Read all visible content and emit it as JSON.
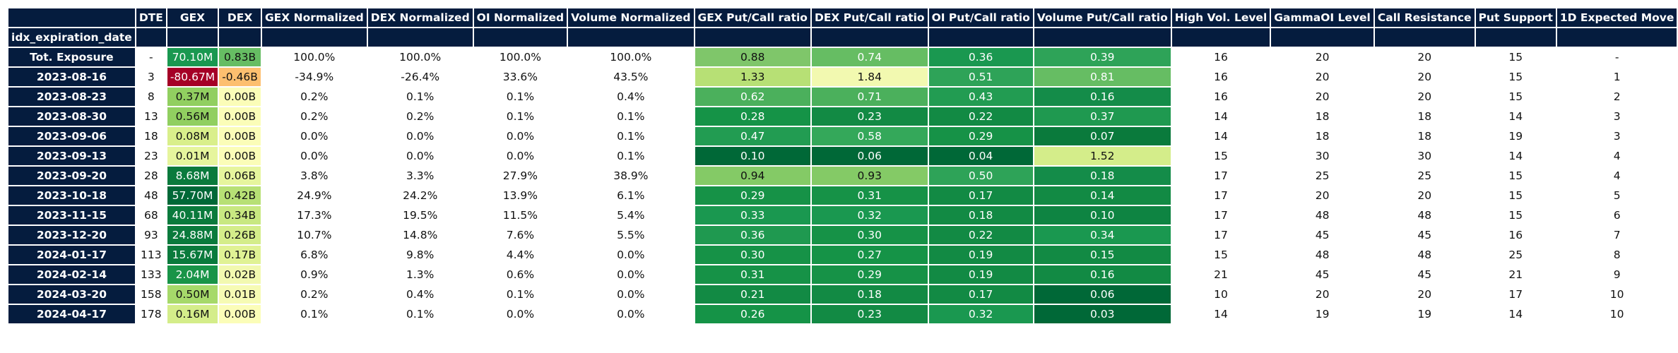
{
  "columns": [
    "DTE",
    "GEX",
    "DEX",
    "GEX Normalized",
    "DEX Normalized",
    "OI Normalized",
    "Volume Normalized",
    "GEX Put/Call ratio",
    "DEX Put/Call ratio",
    "OI Put/Call ratio",
    "Volume Put/Call ratio",
    "High Vol. Level",
    "GammaOI Level",
    "Call Resistance",
    "Put Support",
    "1D Expected Move"
  ],
  "index_name": "idx_expiration_date",
  "rows": [
    {
      "label": "Tot. Exposure",
      "cells": [
        {
          "text": "-"
        },
        {
          "text": "70.10M",
          "bg": "#1a9850",
          "fg": "#ffffff"
        },
        {
          "text": "0.83B",
          "bg": "#66bd63",
          "fg": "#111111"
        },
        {
          "text": "100.0%"
        },
        {
          "text": "100.0%"
        },
        {
          "text": "100.0%"
        },
        {
          "text": "100.0%"
        },
        {
          "text": "0.88",
          "bg": "#7fc66a",
          "fg": "#111111"
        },
        {
          "text": "0.74",
          "bg": "#66bd63",
          "fg": "#ffffff"
        },
        {
          "text": "0.36",
          "bg": "#1a9850",
          "fg": "#ffffff"
        },
        {
          "text": "0.39",
          "bg": "#2ea358",
          "fg": "#ffffff"
        },
        {
          "text": "16"
        },
        {
          "text": "20"
        },
        {
          "text": "20"
        },
        {
          "text": "15"
        },
        {
          "text": "-"
        }
      ]
    },
    {
      "label": "2023-08-16",
      "cells": [
        {
          "text": "3"
        },
        {
          "text": "-80.67M",
          "bg": "#a50026",
          "fg": "#ffffff"
        },
        {
          "text": "-0.46B",
          "bg": "#fdbf6f",
          "fg": "#111111"
        },
        {
          "text": "-34.9%"
        },
        {
          "text": "-26.4%"
        },
        {
          "text": "33.6%"
        },
        {
          "text": "43.5%"
        },
        {
          "text": "1.33",
          "bg": "#b7e075",
          "fg": "#111111"
        },
        {
          "text": "1.84",
          "bg": "#f2f9b0",
          "fg": "#111111"
        },
        {
          "text": "0.51",
          "bg": "#2ea358",
          "fg": "#ffffff"
        },
        {
          "text": "0.81",
          "bg": "#66bd63",
          "fg": "#ffffff"
        },
        {
          "text": "16"
        },
        {
          "text": "20"
        },
        {
          "text": "20"
        },
        {
          "text": "15"
        },
        {
          "text": "1"
        }
      ]
    },
    {
      "label": "2023-08-23",
      "cells": [
        {
          "text": "8"
        },
        {
          "text": "0.37M",
          "bg": "#91cf60",
          "fg": "#111111"
        },
        {
          "text": "0.00B",
          "bg": "#fbfdb8",
          "fg": "#111111"
        },
        {
          "text": "0.2%"
        },
        {
          "text": "0.1%"
        },
        {
          "text": "0.1%"
        },
        {
          "text": "0.4%"
        },
        {
          "text": "0.62",
          "bg": "#4bb05c",
          "fg": "#ffffff"
        },
        {
          "text": "0.71",
          "bg": "#4bb05c",
          "fg": "#ffffff"
        },
        {
          "text": "0.43",
          "bg": "#229c52",
          "fg": "#ffffff"
        },
        {
          "text": "0.16",
          "bg": "#148c49",
          "fg": "#ffffff"
        },
        {
          "text": "16"
        },
        {
          "text": "20"
        },
        {
          "text": "20"
        },
        {
          "text": "15"
        },
        {
          "text": "2"
        }
      ]
    },
    {
      "label": "2023-08-30",
      "cells": [
        {
          "text": "13"
        },
        {
          "text": "0.56M",
          "bg": "#91cf60",
          "fg": "#111111"
        },
        {
          "text": "0.00B",
          "bg": "#fbfdb8",
          "fg": "#111111"
        },
        {
          "text": "0.2%"
        },
        {
          "text": "0.2%"
        },
        {
          "text": "0.1%"
        },
        {
          "text": "0.1%"
        },
        {
          "text": "0.28",
          "bg": "#159347",
          "fg": "#ffffff"
        },
        {
          "text": "0.23",
          "bg": "#128a44",
          "fg": "#ffffff"
        },
        {
          "text": "0.22",
          "bg": "#128a44",
          "fg": "#ffffff"
        },
        {
          "text": "0.37",
          "bg": "#1f9950",
          "fg": "#ffffff"
        },
        {
          "text": "14"
        },
        {
          "text": "18"
        },
        {
          "text": "18"
        },
        {
          "text": "14"
        },
        {
          "text": "3"
        }
      ]
    },
    {
      "label": "2023-09-06",
      "cells": [
        {
          "text": "18"
        },
        {
          "text": "0.08M",
          "bg": "#d9ef8b",
          "fg": "#111111"
        },
        {
          "text": "0.00B",
          "bg": "#fbfdb8",
          "fg": "#111111"
        },
        {
          "text": "0.0%"
        },
        {
          "text": "0.0%"
        },
        {
          "text": "0.0%"
        },
        {
          "text": "0.1%"
        },
        {
          "text": "0.47",
          "bg": "#229c52",
          "fg": "#ffffff"
        },
        {
          "text": "0.58",
          "bg": "#34a85a",
          "fg": "#ffffff"
        },
        {
          "text": "0.29",
          "bg": "#169247",
          "fg": "#ffffff"
        },
        {
          "text": "0.07",
          "bg": "#0a7a3c",
          "fg": "#ffffff"
        },
        {
          "text": "14"
        },
        {
          "text": "18"
        },
        {
          "text": "18"
        },
        {
          "text": "19"
        },
        {
          "text": "3"
        }
      ]
    },
    {
      "label": "2023-09-13",
      "cells": [
        {
          "text": "23"
        },
        {
          "text": "0.01M",
          "bg": "#e6f59d",
          "fg": "#111111"
        },
        {
          "text": "0.00B",
          "bg": "#fbfdb8",
          "fg": "#111111"
        },
        {
          "text": "0.0%"
        },
        {
          "text": "0.0%"
        },
        {
          "text": "0.0%"
        },
        {
          "text": "0.1%"
        },
        {
          "text": "0.10",
          "bg": "#006837",
          "fg": "#ffffff"
        },
        {
          "text": "0.06",
          "bg": "#006837",
          "fg": "#ffffff"
        },
        {
          "text": "0.04",
          "bg": "#006837",
          "fg": "#ffffff"
        },
        {
          "text": "1.52",
          "bg": "#d4ed8a",
          "fg": "#111111"
        },
        {
          "text": "15"
        },
        {
          "text": "30"
        },
        {
          "text": "30"
        },
        {
          "text": "14"
        },
        {
          "text": "4"
        }
      ]
    },
    {
      "label": "2023-09-20",
      "cells": [
        {
          "text": "28"
        },
        {
          "text": "8.68M",
          "bg": "#0a7a3c",
          "fg": "#ffffff"
        },
        {
          "text": "0.06B",
          "bg": "#e6f59d",
          "fg": "#111111"
        },
        {
          "text": "3.8%"
        },
        {
          "text": "3.3%"
        },
        {
          "text": "27.9%"
        },
        {
          "text": "38.9%"
        },
        {
          "text": "0.94",
          "bg": "#84ca66",
          "fg": "#111111"
        },
        {
          "text": "0.93",
          "bg": "#84ca66",
          "fg": "#111111"
        },
        {
          "text": "0.50",
          "bg": "#2ea358",
          "fg": "#ffffff"
        },
        {
          "text": "0.18",
          "bg": "#148c49",
          "fg": "#ffffff"
        },
        {
          "text": "17"
        },
        {
          "text": "25"
        },
        {
          "text": "25"
        },
        {
          "text": "15"
        },
        {
          "text": "4"
        }
      ]
    },
    {
      "label": "2023-10-18",
      "cells": [
        {
          "text": "48"
        },
        {
          "text": "57.70M",
          "bg": "#006837",
          "fg": "#ffffff"
        },
        {
          "text": "0.42B",
          "bg": "#b7e075",
          "fg": "#111111"
        },
        {
          "text": "24.9%"
        },
        {
          "text": "24.2%"
        },
        {
          "text": "13.9%"
        },
        {
          "text": "6.1%"
        },
        {
          "text": "0.29",
          "bg": "#169247",
          "fg": "#ffffff"
        },
        {
          "text": "0.31",
          "bg": "#169247",
          "fg": "#ffffff"
        },
        {
          "text": "0.17",
          "bg": "#128a44",
          "fg": "#ffffff"
        },
        {
          "text": "0.14",
          "bg": "#128a44",
          "fg": "#ffffff"
        },
        {
          "text": "17"
        },
        {
          "text": "20"
        },
        {
          "text": "20"
        },
        {
          "text": "15"
        },
        {
          "text": "5"
        }
      ]
    },
    {
      "label": "2023-11-15",
      "cells": [
        {
          "text": "68"
        },
        {
          "text": "40.11M",
          "bg": "#0a7a3c",
          "fg": "#ffffff"
        },
        {
          "text": "0.34B",
          "bg": "#c8e881",
          "fg": "#111111"
        },
        {
          "text": "17.3%"
        },
        {
          "text": "19.5%"
        },
        {
          "text": "11.5%"
        },
        {
          "text": "5.4%"
        },
        {
          "text": "0.33",
          "bg": "#1a9850",
          "fg": "#ffffff"
        },
        {
          "text": "0.32",
          "bg": "#1a9850",
          "fg": "#ffffff"
        },
        {
          "text": "0.18",
          "bg": "#128a44",
          "fg": "#ffffff"
        },
        {
          "text": "0.10",
          "bg": "#0e8442",
          "fg": "#ffffff"
        },
        {
          "text": "17"
        },
        {
          "text": "48"
        },
        {
          "text": "48"
        },
        {
          "text": "15"
        },
        {
          "text": "6"
        }
      ]
    },
    {
      "label": "2023-12-20",
      "cells": [
        {
          "text": "93"
        },
        {
          "text": "24.88M",
          "bg": "#0a7a3c",
          "fg": "#ffffff"
        },
        {
          "text": "0.26B",
          "bg": "#d4ed8a",
          "fg": "#111111"
        },
        {
          "text": "10.7%"
        },
        {
          "text": "14.8%"
        },
        {
          "text": "7.6%"
        },
        {
          "text": "5.5%"
        },
        {
          "text": "0.36",
          "bg": "#1f9950",
          "fg": "#ffffff"
        },
        {
          "text": "0.30",
          "bg": "#169247",
          "fg": "#ffffff"
        },
        {
          "text": "0.22",
          "bg": "#128a44",
          "fg": "#ffffff"
        },
        {
          "text": "0.34",
          "bg": "#1a9850",
          "fg": "#ffffff"
        },
        {
          "text": "17"
        },
        {
          "text": "45"
        },
        {
          "text": "45"
        },
        {
          "text": "16"
        },
        {
          "text": "7"
        }
      ]
    },
    {
      "label": "2024-01-17",
      "cells": [
        {
          "text": "113"
        },
        {
          "text": "15.67M",
          "bg": "#0a7a3c",
          "fg": "#ffffff"
        },
        {
          "text": "0.17B",
          "bg": "#e0f294",
          "fg": "#111111"
        },
        {
          "text": "6.8%"
        },
        {
          "text": "9.8%"
        },
        {
          "text": "4.4%"
        },
        {
          "text": "0.0%"
        },
        {
          "text": "0.30",
          "bg": "#169247",
          "fg": "#ffffff"
        },
        {
          "text": "0.27",
          "bg": "#159347",
          "fg": "#ffffff"
        },
        {
          "text": "0.19",
          "bg": "#128a44",
          "fg": "#ffffff"
        },
        {
          "text": "0.15",
          "bg": "#128a44",
          "fg": "#ffffff"
        },
        {
          "text": "15"
        },
        {
          "text": "48"
        },
        {
          "text": "48"
        },
        {
          "text": "25"
        },
        {
          "text": "8"
        }
      ]
    },
    {
      "label": "2024-02-14",
      "cells": [
        {
          "text": "133"
        },
        {
          "text": "2.04M",
          "bg": "#199448",
          "fg": "#ffffff"
        },
        {
          "text": "0.02B",
          "bg": "#f2f9b0",
          "fg": "#111111"
        },
        {
          "text": "0.9%"
        },
        {
          "text": "1.3%"
        },
        {
          "text": "0.6%"
        },
        {
          "text": "0.0%"
        },
        {
          "text": "0.31",
          "bg": "#169247",
          "fg": "#ffffff"
        },
        {
          "text": "0.29",
          "bg": "#169247",
          "fg": "#ffffff"
        },
        {
          "text": "0.19",
          "bg": "#128a44",
          "fg": "#ffffff"
        },
        {
          "text": "0.16",
          "bg": "#128a44",
          "fg": "#ffffff"
        },
        {
          "text": "21"
        },
        {
          "text": "45"
        },
        {
          "text": "45"
        },
        {
          "text": "21"
        },
        {
          "text": "9"
        }
      ]
    },
    {
      "label": "2024-03-20",
      "cells": [
        {
          "text": "158"
        },
        {
          "text": "0.50M",
          "bg": "#a6d96a",
          "fg": "#111111"
        },
        {
          "text": "0.01B",
          "bg": "#f6fbb4",
          "fg": "#111111"
        },
        {
          "text": "0.2%"
        },
        {
          "text": "0.4%"
        },
        {
          "text": "0.1%"
        },
        {
          "text": "0.0%"
        },
        {
          "text": "0.21",
          "bg": "#128a44",
          "fg": "#ffffff"
        },
        {
          "text": "0.18",
          "bg": "#128a44",
          "fg": "#ffffff"
        },
        {
          "text": "0.17",
          "bg": "#128a44",
          "fg": "#ffffff"
        },
        {
          "text": "0.06",
          "bg": "#006837",
          "fg": "#ffffff"
        },
        {
          "text": "10"
        },
        {
          "text": "20"
        },
        {
          "text": "20"
        },
        {
          "text": "17"
        },
        {
          "text": "10"
        }
      ]
    },
    {
      "label": "2024-04-17",
      "cells": [
        {
          "text": "178"
        },
        {
          "text": "0.16M",
          "bg": "#d4ed8a",
          "fg": "#111111"
        },
        {
          "text": "0.00B",
          "bg": "#fbfdb8",
          "fg": "#111111"
        },
        {
          "text": "0.1%"
        },
        {
          "text": "0.1%"
        },
        {
          "text": "0.0%"
        },
        {
          "text": "0.0%"
        },
        {
          "text": "0.26",
          "bg": "#159347",
          "fg": "#ffffff"
        },
        {
          "text": "0.23",
          "bg": "#128a44",
          "fg": "#ffffff"
        },
        {
          "text": "0.32",
          "bg": "#1a9850",
          "fg": "#ffffff"
        },
        {
          "text": "0.03",
          "bg": "#006837",
          "fg": "#ffffff"
        },
        {
          "text": "14"
        },
        {
          "text": "19"
        },
        {
          "text": "19"
        },
        {
          "text": "14"
        },
        {
          "text": "10"
        }
      ]
    }
  ]
}
